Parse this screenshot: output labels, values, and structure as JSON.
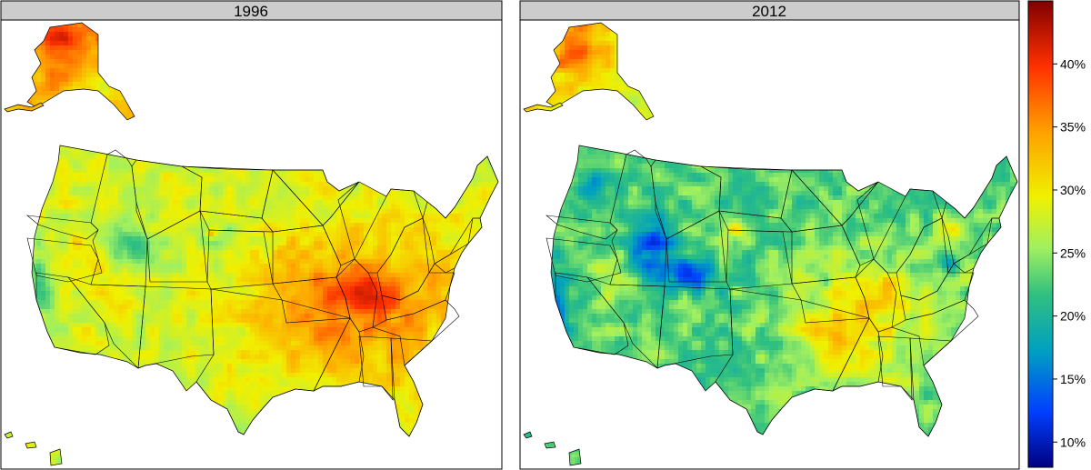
{
  "panels": [
    {
      "id": "left",
      "title": "1996",
      "climate": "warm"
    },
    {
      "id": "right",
      "title": "2012",
      "climate": "cool"
    }
  ],
  "colorbar": {
    "min": 8,
    "max": 45,
    "ticks": [
      {
        "value": 10,
        "label": "10%"
      },
      {
        "value": 15,
        "label": "15%"
      },
      {
        "value": 20,
        "label": "20%"
      },
      {
        "value": 25,
        "label": "25%"
      },
      {
        "value": 30,
        "label": "30%"
      },
      {
        "value": 35,
        "label": "35%"
      },
      {
        "value": 40,
        "label": "40%"
      }
    ],
    "stops": [
      "#000080",
      "#0040ff",
      "#00a0c0",
      "#30c080",
      "#a0f060",
      "#f0f000",
      "#ffa000",
      "#ff3000",
      "#800000"
    ]
  },
  "colors": {
    "strip": "#cccccc",
    "border": "#000000",
    "state_line": "#000000"
  }
}
